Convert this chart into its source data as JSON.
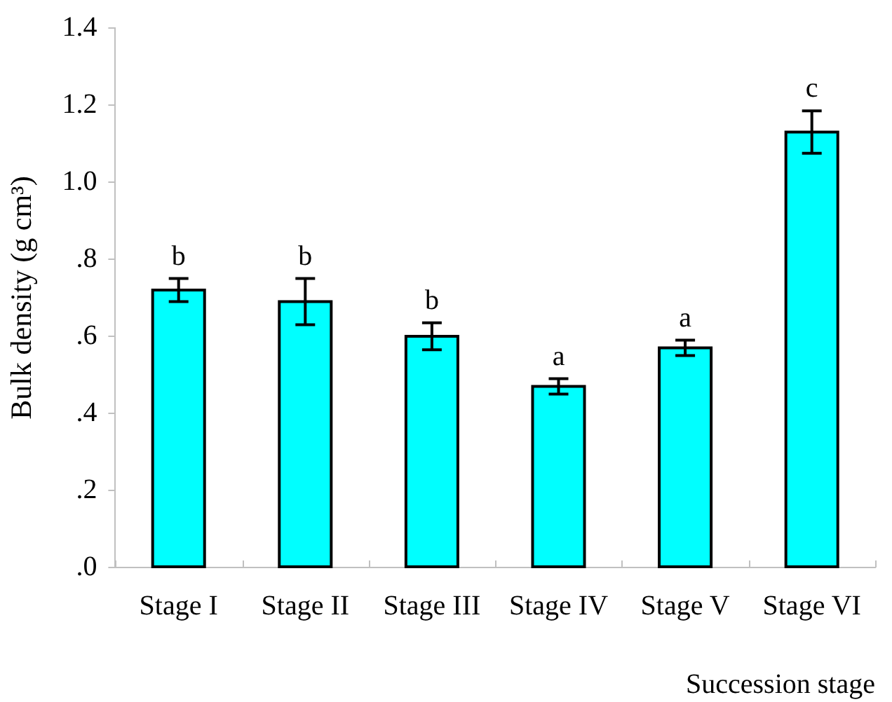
{
  "chart_data": {
    "type": "bar",
    "ylabel": "Bulk density (g cm³)",
    "xlabel": "Succession stage",
    "categories": [
      "Stage I",
      "Stage II",
      "Stage III",
      "Stage IV",
      "Stage V",
      "Stage VI"
    ],
    "values": [
      0.72,
      0.69,
      0.6,
      0.47,
      0.57,
      1.13
    ],
    "errors": [
      0.03,
      0.06,
      0.035,
      0.02,
      0.02,
      0.055
    ],
    "color": "#00ffff",
    "ylim": [
      0,
      1.4
    ],
    "yticks": [
      {
        "value": 0,
        "label": ".0"
      },
      {
        "value": 0.2,
        "label": ".2"
      },
      {
        "value": 0.4,
        "label": ".4"
      },
      {
        "value": 0.6,
        "label": ".6"
      },
      {
        "value": 0.8,
        "label": ".8"
      },
      {
        "value": 1,
        "label": "1.0"
      },
      1.2,
      1.4
    ],
    "annotations": [
      "b",
      "b",
      "b",
      "a",
      "a",
      "c"
    ],
    "grid": false,
    "legend": false
  }
}
